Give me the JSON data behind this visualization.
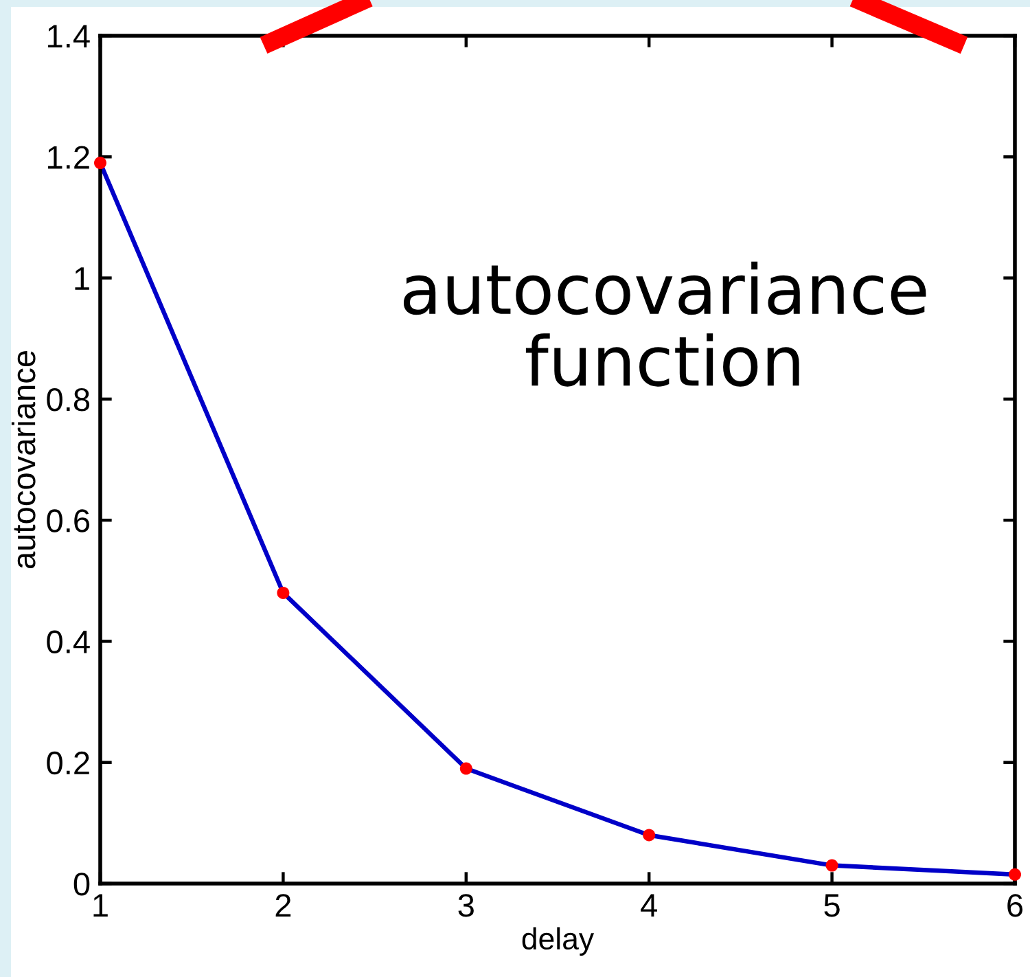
{
  "chart_data": {
    "type": "line",
    "xlabel": "delay",
    "ylabel": "autocovariance",
    "x": [
      1,
      2,
      3,
      4,
      5,
      6
    ],
    "series": [
      {
        "color": "#0000c8",
        "colors": [
          "#ff0000",
          "#ff0000",
          "#ff0000",
          "#ff0000",
          "#ff0000",
          "#ff0000"
        ],
        "values": [
          1.19,
          0.48,
          0.19,
          0.08,
          0.03,
          0.015
        ]
      }
    ],
    "xlim": [
      1,
      6
    ],
    "xticks": [
      1,
      2,
      3,
      4,
      5,
      6
    ],
    "ylim": [
      0,
      1.4
    ],
    "yticks": [
      0,
      0.2,
      0.4,
      0.6,
      0.8,
      1,
      1.2,
      1.4
    ],
    "annotations": [
      "autocovariance\nfunction"
    ],
    "marker": "circle",
    "line_style": "solid",
    "grid": false
  }
}
